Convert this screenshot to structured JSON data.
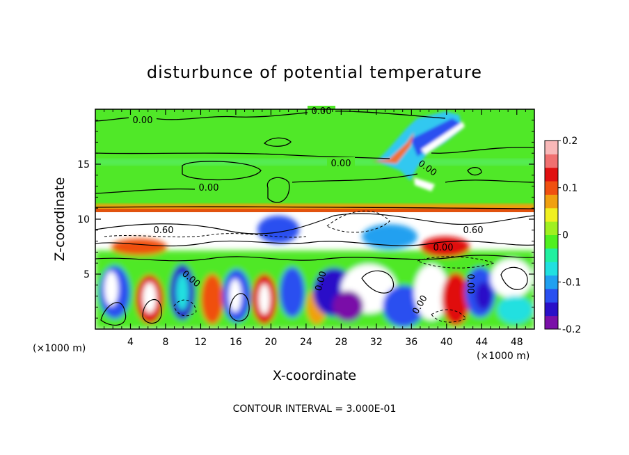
{
  "chart_data": {
    "type": "heatmap",
    "title": "disturbunce of potential temperature",
    "xlabel": "X-coordinate",
    "ylabel": "Z-coordinate",
    "x_unit_left": "(×1000 m)",
    "x_unit_right": "(×1000 m)",
    "footnote": "CONTOUR INTERVAL = 3.000E-01",
    "xlim": [
      0,
      50
    ],
    "ylim": [
      0,
      20
    ],
    "x_ticks": [
      "4",
      "8",
      "12",
      "16",
      "20",
      "24",
      "28",
      "32",
      "36",
      "40",
      "44",
      "48"
    ],
    "y_ticks": [
      "5",
      "10",
      "15"
    ],
    "colorbar": {
      "range": [
        -0.2,
        0.2
      ],
      "tick_labels": [
        "0.2",
        "0.1",
        "0",
        "-0.1",
        "-0.2"
      ],
      "colors": [
        "#7a10a8",
        "#2a10c8",
        "#2a50f0",
        "#20a0f0",
        "#20e0e0",
        "#20f0a0",
        "#50f020",
        "#a0f020",
        "#f0f020",
        "#f0a010",
        "#f05010",
        "#e01010",
        "#f07070",
        "#f8b8b8"
      ]
    },
    "contour_labels": [
      "0.00",
      "0.00",
      "0.00",
      "0.00",
      "0.00",
      "0.60",
      "0.60",
      "0.00",
      "0.00",
      "0.00",
      "0.00",
      "0.00"
    ],
    "background_field_value": 0.0
  }
}
